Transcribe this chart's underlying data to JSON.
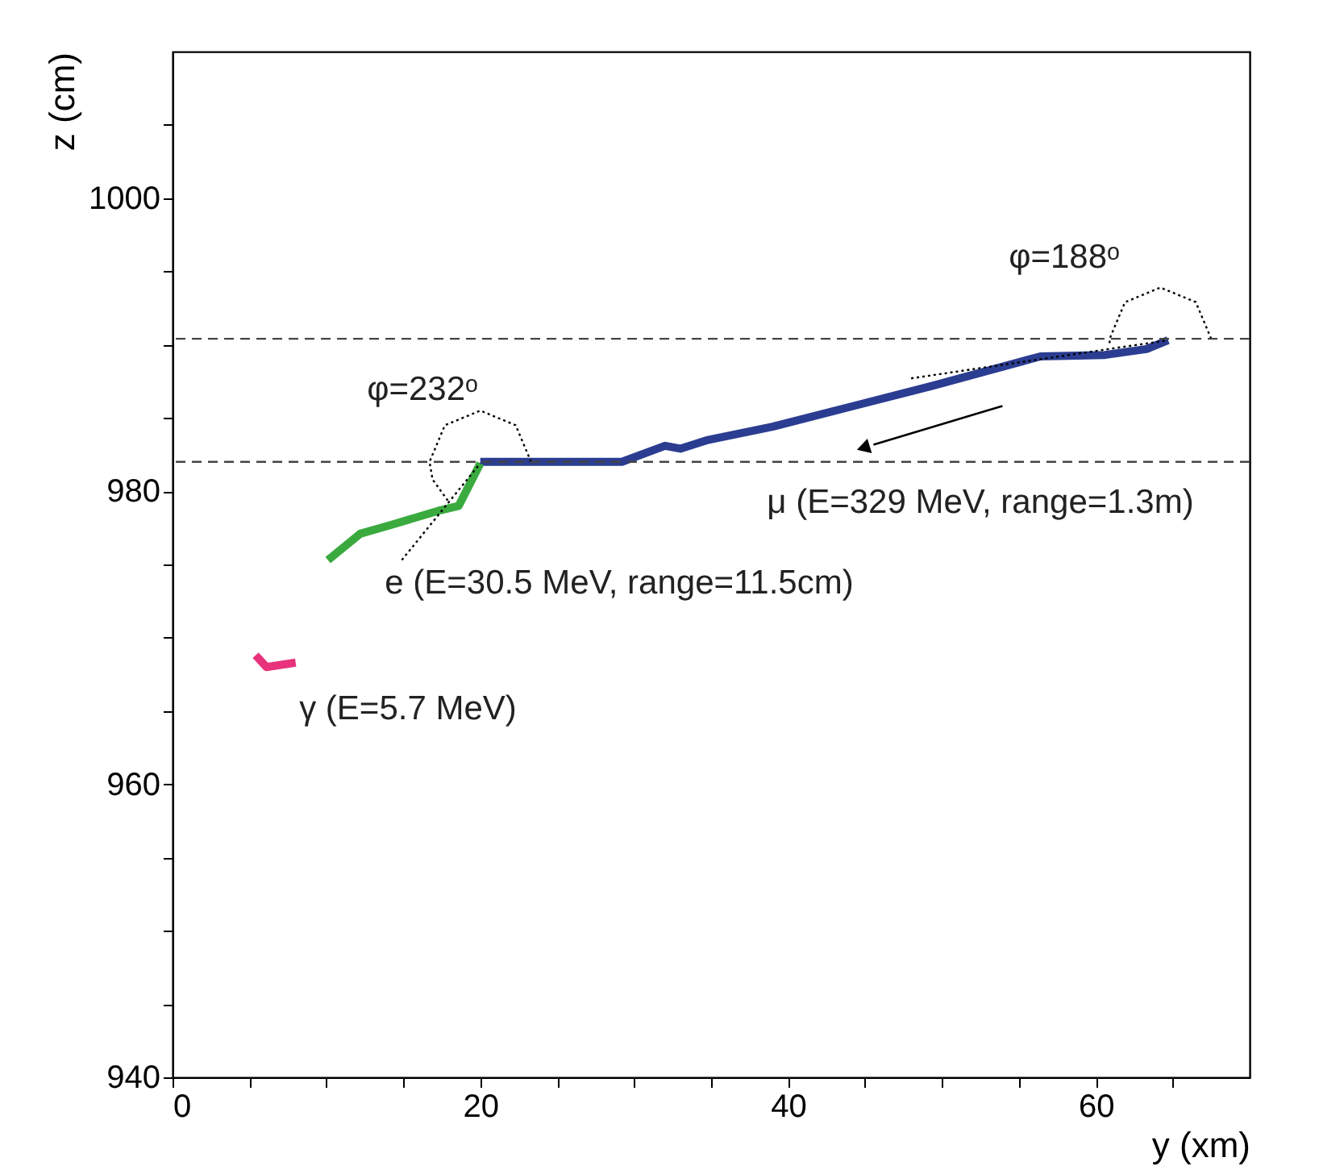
{
  "chart_data": {
    "type": "line",
    "xlabel": "y (xm)",
    "ylabel": "z (cm)",
    "xlim": [
      0,
      70
    ],
    "xticks": [
      0,
      {
        "value": 5,
        "label": null
      },
      {
        "value": 10,
        "label": null
      },
      {
        "value": 15,
        "label": null
      },
      20,
      {
        "value": 25,
        "label": null
      },
      {
        "value": 30,
        "label": null
      },
      {
        "value": 35,
        "label": null
      },
      40,
      {
        "value": 45,
        "label": null
      },
      {
        "value": 50,
        "label": null
      },
      {
        "value": 55,
        "label": null
      },
      60,
      {
        "value": 65,
        "label": null
      }
    ],
    "ylim": [
      940,
      1010
    ],
    "yticks": [
      940,
      {
        "value": 945,
        "label": null
      },
      {
        "value": 950,
        "label": null
      },
      {
        "value": 955,
        "label": null
      },
      960,
      {
        "value": 965,
        "label": null
      },
      {
        "value": 970,
        "label": null
      },
      {
        "value": 975,
        "label": null
      },
      980,
      {
        "value": 985,
        "label": null
      },
      {
        "value": 990,
        "label": null
      },
      {
        "value": 995,
        "label": null
      },
      1000,
      {
        "value": 1005,
        "label": null
      }
    ],
    "grid": false,
    "series": [
      {
        "color": "#2b3d91",
        "line_style": "solid",
        "x": [
          20.0,
          29.2,
          32.0,
          33.0,
          34.8,
          39.0,
          44.2,
          49.4,
          56.4,
          60.6,
          63.3,
          64.7
        ],
        "values": [
          982.0,
          982.0,
          983.1,
          982.9,
          983.5,
          984.4,
          985.8,
          987.2,
          989.2,
          989.3,
          989.7,
          990.3
        ]
      },
      {
        "color": "#3aaa3f",
        "line_style": "solid",
        "x": [
          10.1,
          12.2,
          14.2,
          17.4,
          18.6,
          20.0
        ],
        "values": [
          975.3,
          977.1,
          977.7,
          978.7,
          979.0,
          981.9
        ]
      },
      {
        "color": "#e8327c",
        "line_style": "solid",
        "x": [
          5.4,
          6.1,
          8.0
        ],
        "values": [
          968.8,
          968.0,
          968.3
        ]
      },
      {
        "color": "#000000",
        "line_style": "dotted",
        "x": [
          14.9,
          20.0
        ],
        "values": [
          975.3,
          981.9
        ]
      },
      {
        "color": "#000000",
        "line_style": "dotted",
        "x": [
          48.0,
          64.7
        ],
        "values": [
          987.7,
          990.3
        ]
      },
      {
        "color": "#000000",
        "line_style": "dotted",
        "x": [
          23.3,
          22.3,
          20.0,
          17.7,
          16.7,
          16.9,
          18.0
        ],
        "values": [
          982.0,
          984.5,
          985.5,
          984.5,
          982.0,
          980.8,
          979.2
        ]
      },
      {
        "color": "#000000",
        "line_style": "dotted",
        "x": [
          67.5,
          66.5,
          64.2,
          61.9,
          60.9,
          60.9
        ],
        "values": [
          990.4,
          992.9,
          993.9,
          992.9,
          990.4,
          989.9
        ]
      }
    ],
    "ref_lines": [
      {
        "axis": "y",
        "value": 990.4,
        "label": null,
        "line_style": "dashed",
        "color": "#444444"
      },
      {
        "axis": "y",
        "value": 982,
        "label": null,
        "line_style": "dashed",
        "color": "#444444"
      }
    ],
    "annotations": [
      "φ=188ᵒ",
      "φ=232ᵒ",
      "μ (E=329 MeV, range=1.3m)",
      "e (E=30.5 MeV, range=11.5cm)",
      "γ (E=5.7 MeV)"
    ]
  }
}
